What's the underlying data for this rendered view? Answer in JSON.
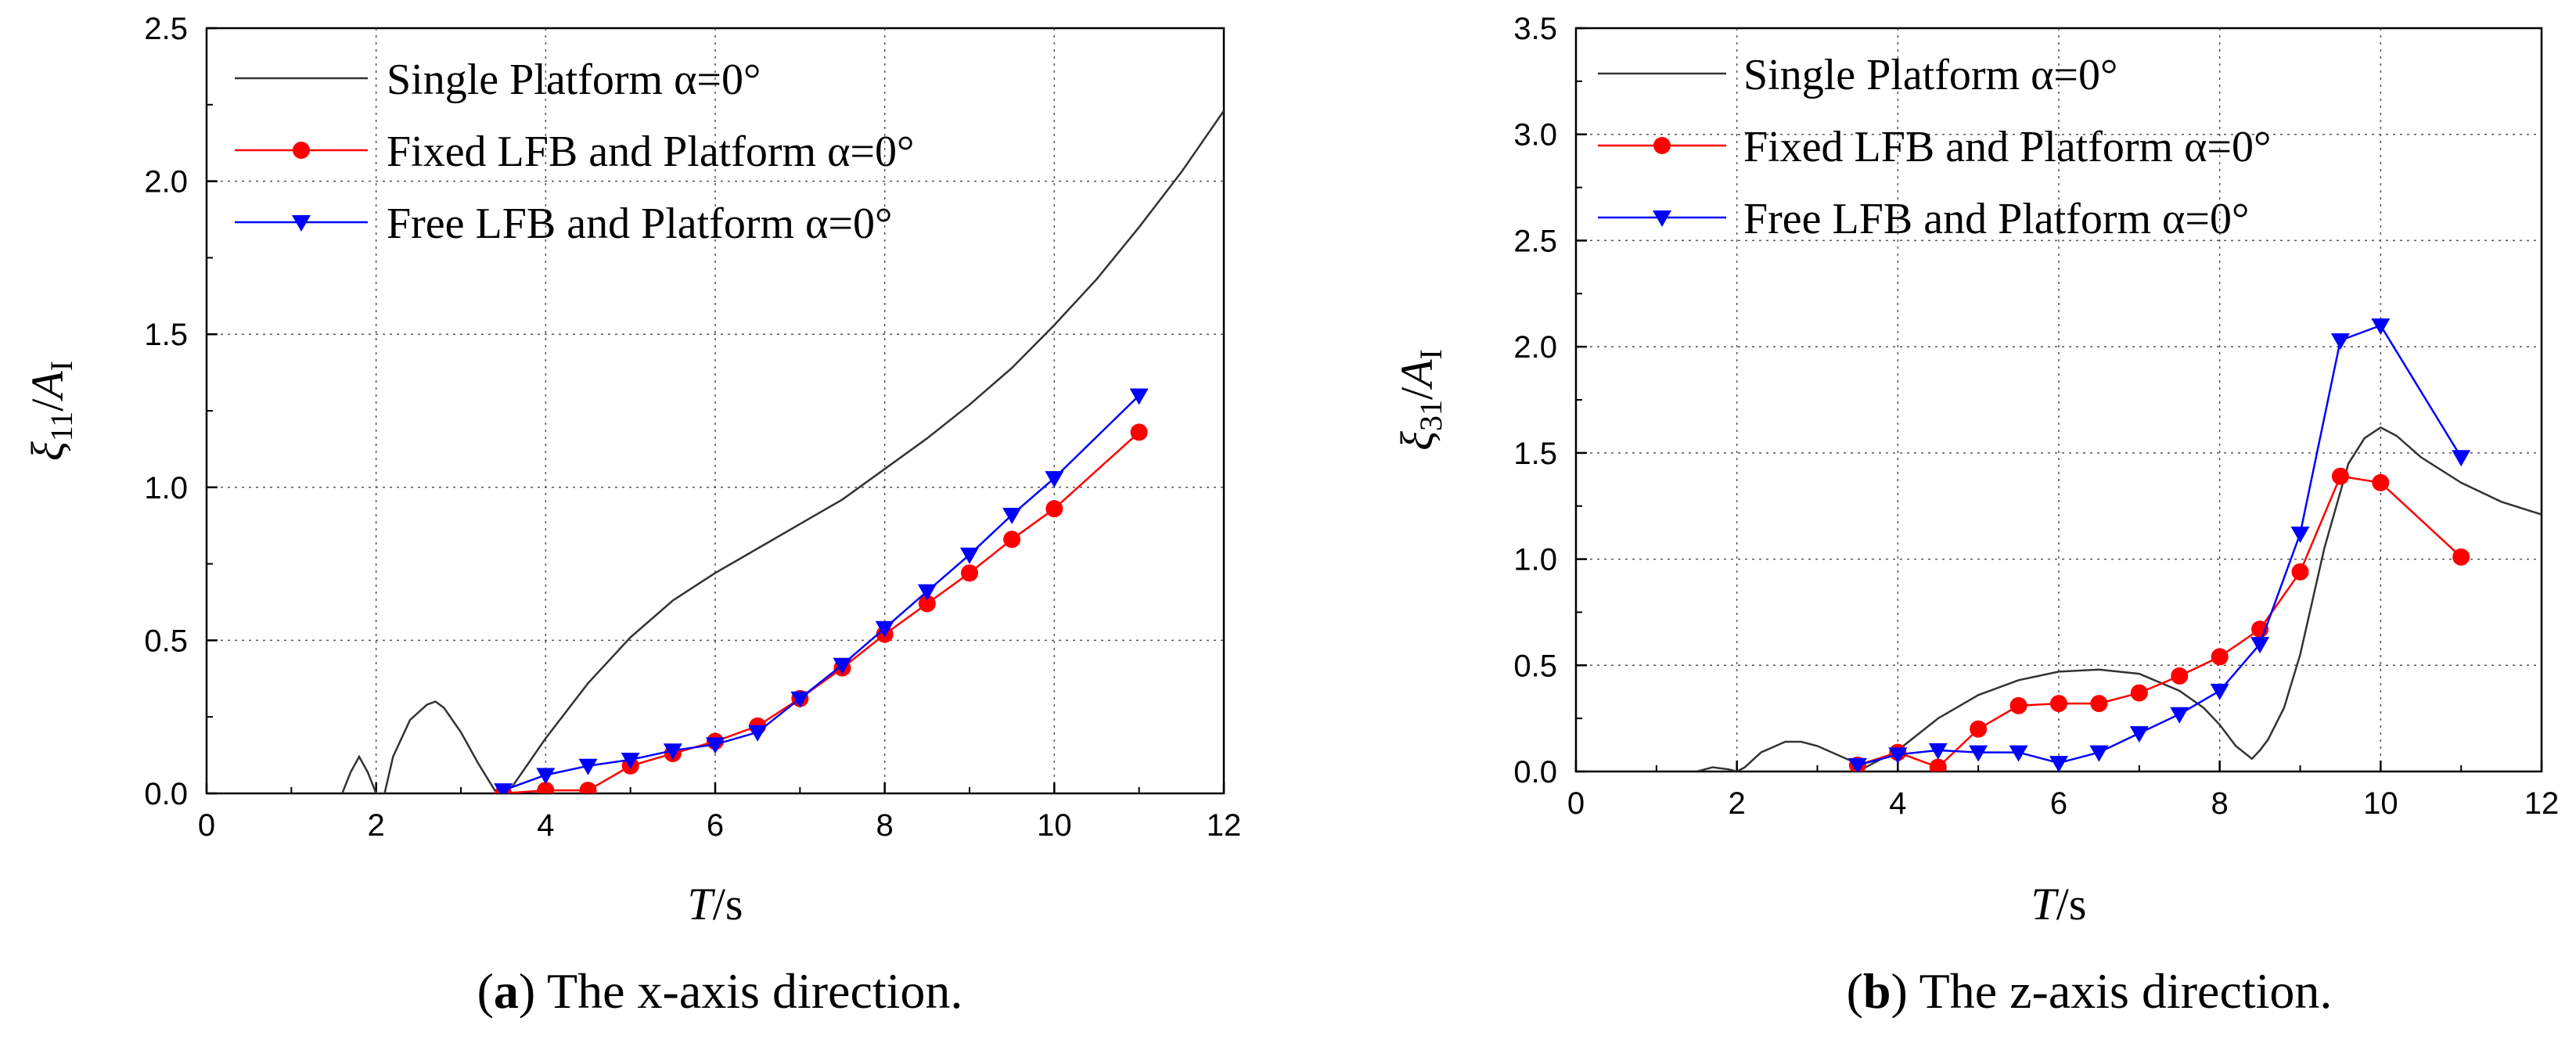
{
  "chart_data": [
    {
      "type": "line",
      "panel_label": "a",
      "caption_text": " The x-axis direction.",
      "xlabel": "T/s",
      "ylabel": "ξ11/AI",
      "xlim": [
        0,
        12
      ],
      "ylim": [
        0,
        2.5
      ],
      "xticks": [
        0,
        2,
        4,
        6,
        8,
        10,
        12
      ],
      "yticks": [
        0.0,
        0.5,
        1.0,
        1.5,
        2.0,
        2.5
      ],
      "grid": true,
      "legend_position": "top-left",
      "series": [
        {
          "name": "Single Platform α=0°",
          "color": "#333333",
          "marker": "none",
          "x": [
            1.6,
            1.7,
            1.8,
            1.9,
            2.0,
            2.1,
            2.2,
            2.4,
            2.6,
            2.7,
            2.8,
            3.0,
            3.2,
            3.4,
            3.6,
            3.8,
            4.0,
            4.5,
            5.0,
            5.5,
            6.0,
            6.5,
            7.0,
            7.5,
            8.0,
            8.5,
            9.0,
            9.5,
            10.0,
            10.5,
            11.0,
            11.5,
            12.0
          ],
          "y": [
            0.0,
            0.07,
            0.12,
            0.07,
            0.0,
            0.0,
            0.12,
            0.24,
            0.29,
            0.3,
            0.28,
            0.2,
            0.1,
            0.01,
            0.02,
            0.1,
            0.18,
            0.36,
            0.51,
            0.63,
            0.72,
            0.8,
            0.88,
            0.96,
            1.06,
            1.16,
            1.27,
            1.39,
            1.53,
            1.68,
            1.85,
            2.03,
            2.23
          ]
        },
        {
          "name": "Fixed LFB and Platform α=0°",
          "color": "#ff0000",
          "marker": "circle",
          "x": [
            3.5,
            4.0,
            4.5,
            5.0,
            5.5,
            6.0,
            6.5,
            7.0,
            7.5,
            8.0,
            8.5,
            9.0,
            9.5,
            10.0,
            11.0
          ],
          "y": [
            0.0,
            0.01,
            0.01,
            0.09,
            0.13,
            0.17,
            0.22,
            0.31,
            0.41,
            0.52,
            0.62,
            0.72,
            0.83,
            0.93,
            1.18
          ]
        },
        {
          "name": "Free LFB and Platform α=0°",
          "color": "#0000ff",
          "marker": "triangle-down",
          "x": [
            3.5,
            4.0,
            4.5,
            5.0,
            5.5,
            6.0,
            6.5,
            7.0,
            7.5,
            8.0,
            8.5,
            9.0,
            9.5,
            10.0,
            11.0
          ],
          "y": [
            0.01,
            0.06,
            0.09,
            0.11,
            0.14,
            0.16,
            0.2,
            0.31,
            0.42,
            0.54,
            0.66,
            0.78,
            0.91,
            1.03,
            1.3
          ]
        }
      ]
    },
    {
      "type": "line",
      "panel_label": "b",
      "caption_text": " The z-axis direction.",
      "xlabel": "T/s",
      "ylabel": "ξ31/AI",
      "xlim": [
        0,
        12
      ],
      "ylim": [
        0,
        3.5
      ],
      "xticks": [
        0,
        2,
        4,
        6,
        8,
        10,
        12
      ],
      "yticks": [
        0.0,
        0.5,
        1.0,
        1.5,
        2.0,
        2.5,
        3.0,
        3.5
      ],
      "grid": true,
      "legend_position": "top-left",
      "series": [
        {
          "name": "Single Platform α=0°",
          "color": "#333333",
          "marker": "none",
          "x": [
            1.5,
            1.7,
            1.9,
            2.0,
            2.1,
            2.3,
            2.6,
            2.8,
            3.0,
            3.3,
            3.6,
            4.0,
            4.5,
            5.0,
            5.5,
            6.0,
            6.5,
            7.0,
            7.5,
            7.8,
            8.0,
            8.2,
            8.4,
            8.5,
            8.6,
            8.8,
            9.0,
            9.3,
            9.6,
            9.8,
            10.0,
            10.2,
            10.5,
            11.0,
            11.5,
            12.0
          ],
          "y": [
            0.0,
            0.02,
            0.01,
            0.0,
            0.02,
            0.09,
            0.14,
            0.14,
            0.12,
            0.07,
            0.02,
            0.1,
            0.25,
            0.36,
            0.43,
            0.47,
            0.48,
            0.46,
            0.38,
            0.3,
            0.22,
            0.12,
            0.06,
            0.1,
            0.15,
            0.3,
            0.55,
            1.05,
            1.45,
            1.57,
            1.62,
            1.58,
            1.48,
            1.36,
            1.27,
            1.21
          ]
        },
        {
          "name": "Fixed LFB and Platform α=0°",
          "color": "#ff0000",
          "marker": "circle",
          "x": [
            3.5,
            4.0,
            4.5,
            5.0,
            5.5,
            6.0,
            6.5,
            7.0,
            7.5,
            8.0,
            8.5,
            9.0,
            9.5,
            10.0,
            11.0
          ],
          "y": [
            0.03,
            0.09,
            0.02,
            0.2,
            0.31,
            0.32,
            0.32,
            0.37,
            0.45,
            0.54,
            0.67,
            0.94,
            1.39,
            1.36,
            1.01
          ]
        },
        {
          "name": "Free LFB and Platform α=0°",
          "color": "#0000ff",
          "marker": "triangle-down",
          "x": [
            3.5,
            4.0,
            4.5,
            5.0,
            5.5,
            6.0,
            6.5,
            7.0,
            7.5,
            8.0,
            8.5,
            9.0,
            9.5,
            10.0,
            11.0
          ],
          "y": [
            0.03,
            0.08,
            0.1,
            0.09,
            0.09,
            0.04,
            0.09,
            0.18,
            0.27,
            0.38,
            0.6,
            1.12,
            2.03,
            2.1,
            1.48
          ]
        }
      ]
    }
  ]
}
